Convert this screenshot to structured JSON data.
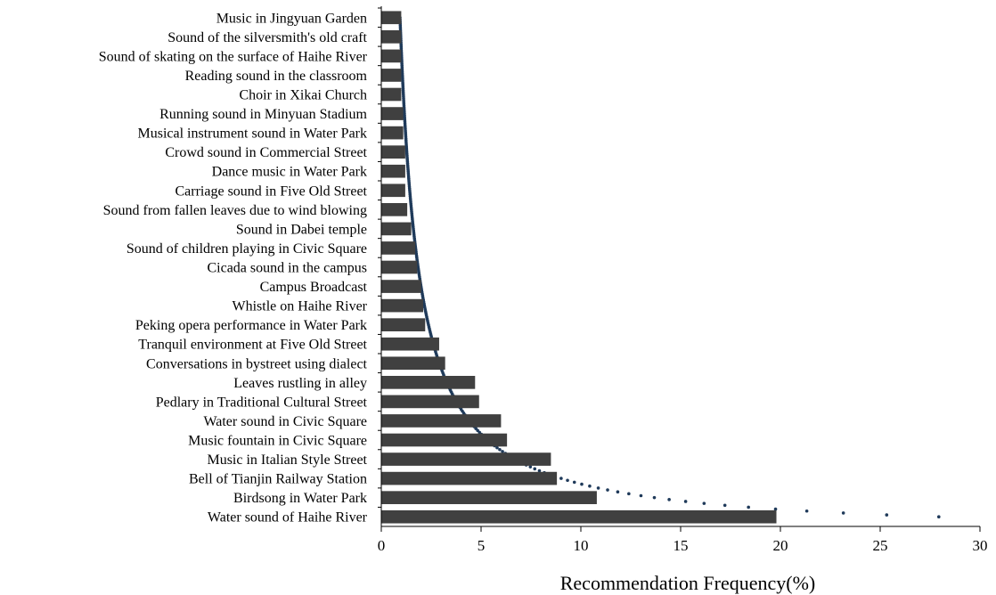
{
  "chart_data": {
    "type": "bar",
    "orientation": "horizontal",
    "title": "",
    "xlabel": "Recommendation Frequency(%)",
    "ylabel": "",
    "xlim": [
      0,
      30
    ],
    "xticks": [
      "0",
      "5",
      "10",
      "15",
      "20",
      "25",
      "30"
    ],
    "grid": false,
    "legend": "none",
    "bar_color": "#404040",
    "trend_color": "#1f3a5a",
    "trendline": "dotted power-law trend",
    "categories": [
      "Music in Jingyuan Garden",
      "Sound of the silversmith's old craft",
      "Sound of skating on the surface of Haihe River",
      "Reading sound in the classroom",
      "Choir in Xikai Church",
      "Running sound in Minyuan Stadium",
      "Musical instrument sound in Water Park",
      "Crowd sound in Commercial Street",
      "Dance music in Water Park",
      "Carriage sound in Five Old Street",
      "Sound from fallen leaves due to wind blowing",
      "Sound in Dabei temple",
      "Sound of children playing in Civic Square",
      "Cicada sound in the campus",
      "Campus Broadcast",
      "Whistle on Haihe River",
      "Peking opera performance in Water Park",
      "Tranquil environment at  Five Old Street",
      "Conversations in bystreet using dialect",
      "Leaves rustling in alley",
      "Pedlary in Traditional Cultural Street",
      "Water sound in Civic Square",
      "Music fountain  in Civic Square",
      "Music in Italian Style Street",
      "Bell of Tianjin Railway Station",
      "Birdsong in Water Park",
      "Water sound of Haihe River"
    ],
    "values": [
      1.0,
      1.0,
      1.0,
      1.0,
      1.0,
      1.1,
      1.1,
      1.2,
      1.2,
      1.2,
      1.3,
      1.5,
      1.7,
      1.8,
      2.0,
      2.1,
      2.2,
      2.9,
      3.2,
      4.7,
      4.9,
      6.0,
      6.3,
      8.5,
      8.8,
      10.8,
      19.8
    ]
  }
}
